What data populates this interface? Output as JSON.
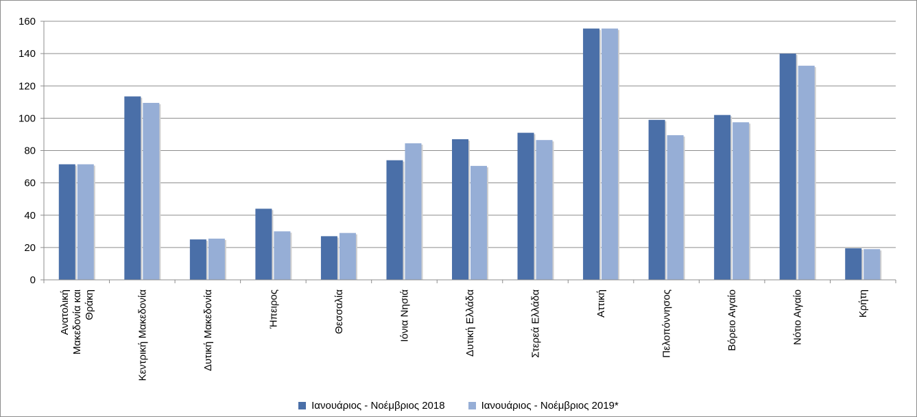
{
  "chart_data": {
    "type": "bar",
    "categories": [
      [
        "Ανατολική",
        "Μακεδονία και",
        "Θράκη"
      ],
      [
        "Κεντρική Μακεδονία"
      ],
      [
        "Δυτική Μακεδονία"
      ],
      [
        "Ήπειρος"
      ],
      [
        "Θεσσαλία"
      ],
      [
        "Ιόνια Νησιά"
      ],
      [
        "Δυτική Ελλάδα"
      ],
      [
        "Στερεά Ελλάδα"
      ],
      [
        "Αττική"
      ],
      [
        "Πελοπόννησος"
      ],
      [
        "Βόρειο Αιγαίο"
      ],
      [
        "Νότιο Αιγαίο"
      ],
      [
        "Κρήτη"
      ]
    ],
    "series": [
      {
        "name": "Ιανουάριος - Νοέμβριος 2018",
        "color": "#4a6fa8",
        "values": [
          71.5,
          113.5,
          25,
          44,
          27,
          74,
          87,
          91,
          155.5,
          99,
          102,
          140,
          19.5
        ]
      },
      {
        "name": "Ιανουάριος - Νοέμβριος 2019*",
        "color": "#96aed6",
        "values": [
          71.5,
          109.5,
          25.5,
          30,
          29,
          84.5,
          70.5,
          86.5,
          155.5,
          89.5,
          97.5,
          132.5,
          19
        ]
      }
    ],
    "yticks": [
      "0",
      "20",
      "40",
      "60",
      "80",
      "100",
      "120",
      "140",
      "160"
    ],
    "ylim": [
      0,
      160
    ],
    "grid": true,
    "legend_position": "bottom"
  }
}
